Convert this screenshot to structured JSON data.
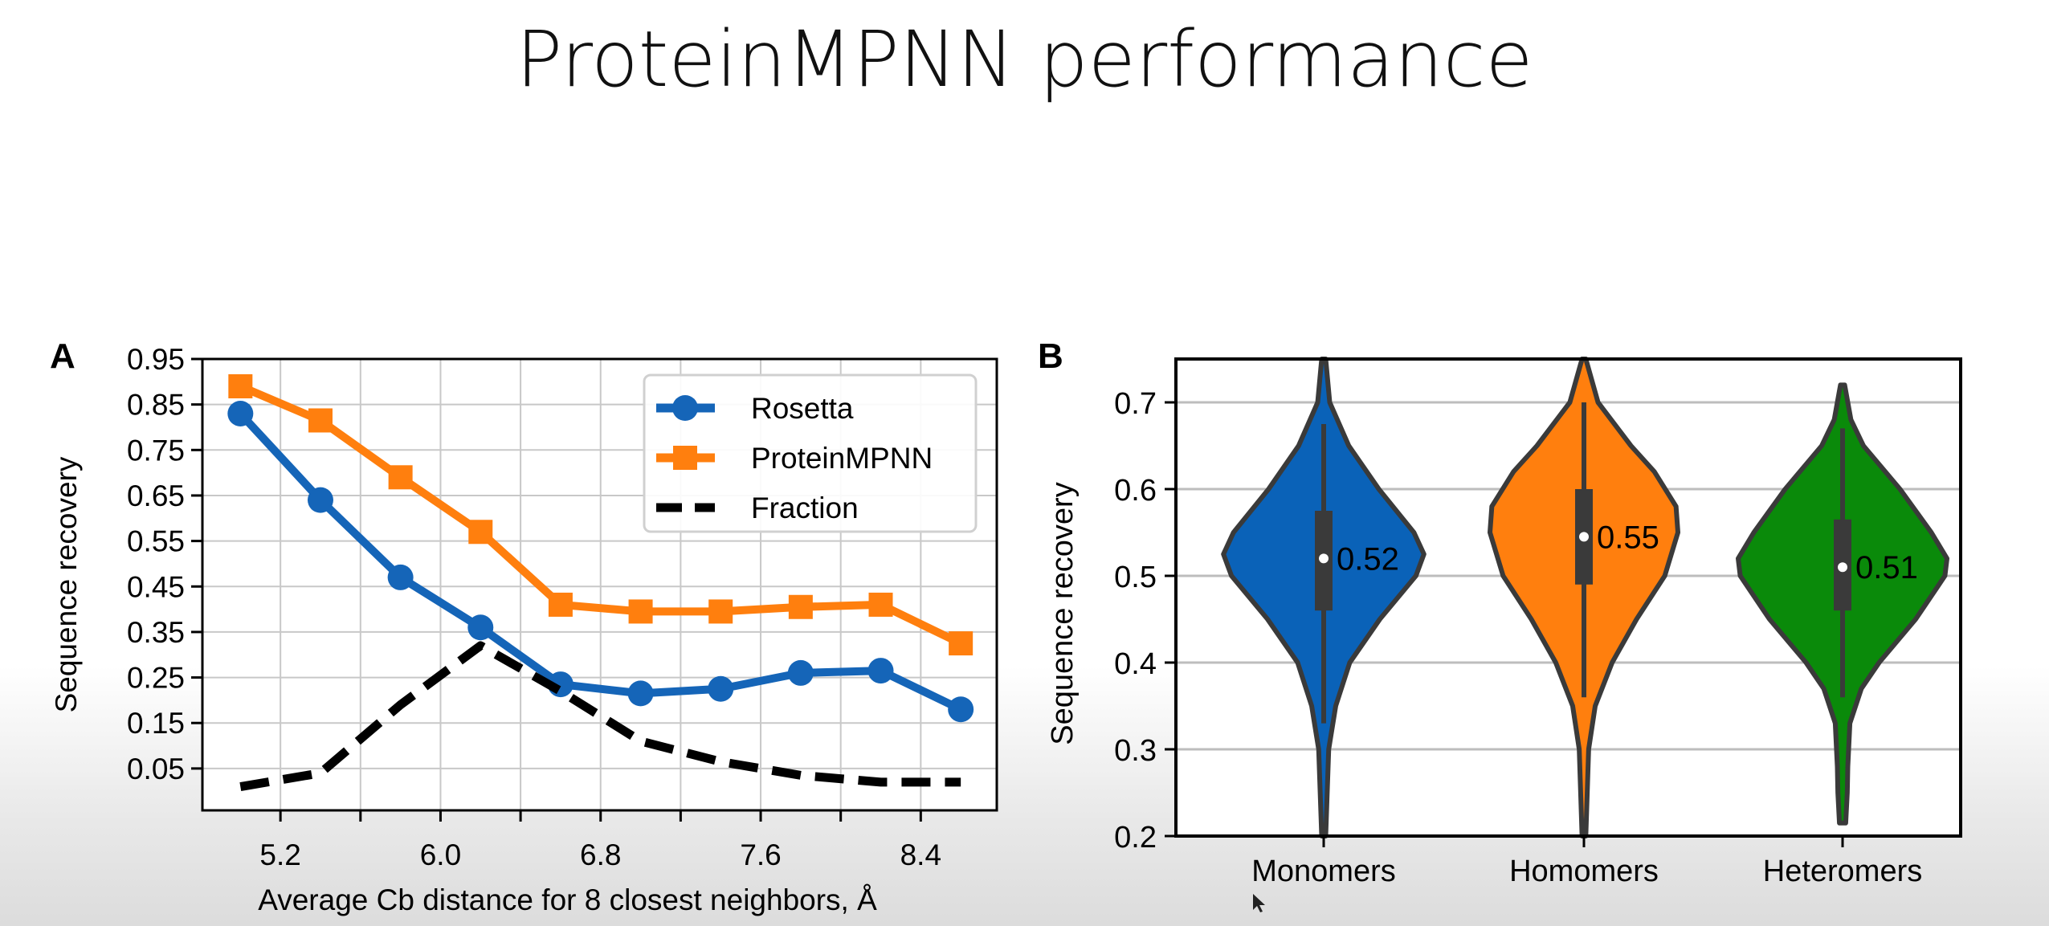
{
  "slide": {
    "title": "ProteinMPNN performance"
  },
  "chart_data": [
    {
      "type": "line",
      "panel_label": "A",
      "xlabel": "Average Cb distance for 8 closest neighbors, Å",
      "ylabel": "Sequence recovery",
      "x_ticks": [
        5.2,
        6.0,
        6.8,
        7.6,
        8.4
      ],
      "y_ticks": [
        0.95,
        0.85,
        0.75,
        0.65,
        0.55,
        0.45,
        0.35,
        0.25,
        0.15,
        0.05
      ],
      "xlim": [
        4.81,
        8.78
      ],
      "ylim": [
        -0.042,
        0.95
      ],
      "grid": true,
      "legend_position": "top-right",
      "x": [
        5.0,
        5.4,
        5.8,
        6.2,
        6.6,
        7.0,
        7.4,
        7.8,
        8.2,
        8.6
      ],
      "series": [
        {
          "name": "Rosetta",
          "color": "#1565b8",
          "marker": "circle",
          "values": [
            0.83,
            0.64,
            0.47,
            0.36,
            0.235,
            0.215,
            0.225,
            0.26,
            0.265,
            0.18
          ]
        },
        {
          "name": "ProteinMPNN",
          "color": "#ff7f0e",
          "marker": "square",
          "values": [
            0.89,
            0.815,
            0.69,
            0.57,
            0.41,
            0.395,
            0.395,
            0.405,
            0.41,
            0.325
          ]
        },
        {
          "name": "Fraction",
          "color": "#000000",
          "marker": "none",
          "dashed": true,
          "values": [
            0.01,
            0.04,
            0.19,
            0.32,
            0.22,
            0.11,
            0.065,
            0.035,
            0.02,
            0.02
          ]
        }
      ]
    },
    {
      "type": "violin",
      "panel_label": "B",
      "ylabel": "Sequence recovery",
      "y_ticks": [
        0.2,
        0.3,
        0.4,
        0.5,
        0.6,
        0.7
      ],
      "ylim": [
        0.2,
        0.75
      ],
      "grid": "horizontal",
      "categories": [
        "Monomers",
        "Homomers",
        "Heteromers"
      ],
      "violins": [
        {
          "name": "Monomers",
          "color": "#0a62b8",
          "median": 0.52,
          "median_label": "0.52",
          "q1": 0.46,
          "q3": 0.575,
          "whisker_low": 0.33,
          "whisker_high": 0.675,
          "density_profile": [
            [
              0.2,
              0.02
            ],
            [
              0.3,
              0.05
            ],
            [
              0.35,
              0.12
            ],
            [
              0.4,
              0.26
            ],
            [
              0.45,
              0.56
            ],
            [
              0.5,
              0.92
            ],
            [
              0.525,
              1.0
            ],
            [
              0.55,
              0.9
            ],
            [
              0.6,
              0.55
            ],
            [
              0.65,
              0.25
            ],
            [
              0.7,
              0.06
            ],
            [
              0.75,
              0.02
            ]
          ],
          "max_width_rel": 0.96
        },
        {
          "name": "Homomers",
          "color": "#ff7f0e",
          "median": 0.545,
          "median_label": "0.55",
          "q1": 0.49,
          "q3": 0.6,
          "whisker_low": 0.36,
          "whisker_high": 0.7,
          "density_profile": [
            [
              0.2,
              0.02
            ],
            [
              0.3,
              0.05
            ],
            [
              0.35,
              0.12
            ],
            [
              0.4,
              0.3
            ],
            [
              0.45,
              0.56
            ],
            [
              0.5,
              0.86
            ],
            [
              0.55,
              1.0
            ],
            [
              0.58,
              0.98
            ],
            [
              0.62,
              0.75
            ],
            [
              0.65,
              0.5
            ],
            [
              0.7,
              0.15
            ],
            [
              0.75,
              0.02
            ]
          ],
          "max_width_rel": 0.9
        },
        {
          "name": "Heteromers",
          "color": "#0a8a0a",
          "median": 0.51,
          "median_label": "0.51",
          "q1": 0.46,
          "q3": 0.565,
          "whisker_low": 0.36,
          "whisker_high": 0.67,
          "density_profile": [
            [
              0.215,
              0.03
            ],
            [
              0.25,
              0.045
            ],
            [
              0.28,
              0.05
            ],
            [
              0.33,
              0.07
            ],
            [
              0.37,
              0.18
            ],
            [
              0.4,
              0.35
            ],
            [
              0.45,
              0.7
            ],
            [
              0.5,
              0.98
            ],
            [
              0.52,
              1.0
            ],
            [
              0.55,
              0.85
            ],
            [
              0.6,
              0.55
            ],
            [
              0.65,
              0.2
            ],
            [
              0.68,
              0.08
            ],
            [
              0.72,
              0.02
            ]
          ],
          "max_width_rel": 1.0
        }
      ]
    }
  ]
}
